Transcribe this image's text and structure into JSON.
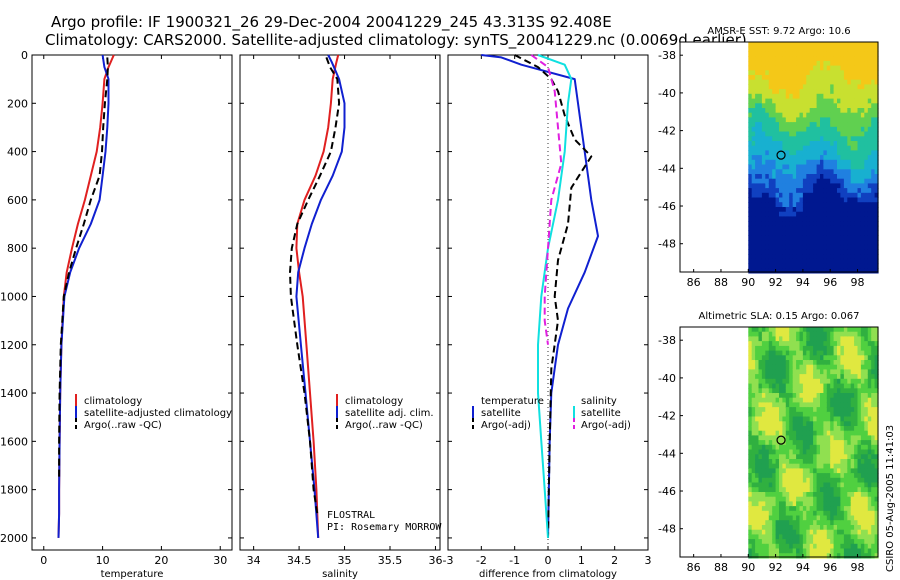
{
  "header": {
    "line1": "Argo profile: IF 1900321_26 29-Dec-2004 20041229_245 43.313S 92.408E",
    "line2": "Climatology: CARS2000. Satellite-adjusted climatology: synTS_20041229.nc (0.0069d earlier)"
  },
  "side_stamp": "CSIRO 05-Aug-2005 11:41:03",
  "colors": {
    "climatology": "#e02020",
    "satellite": "#1020d0",
    "argo": "#000000",
    "sal_satellite": "#10e0e0",
    "sal_argo": "#e020e0"
  },
  "chart_data": [
    {
      "type": "line",
      "panel": "temperature",
      "xlabel": "temperature",
      "xlim": [
        -2,
        32
      ],
      "ylim": [
        2050,
        0
      ],
      "y_reversed": true,
      "xticks": [
        0,
        10,
        20,
        30
      ],
      "yticks": [
        0,
        200,
        400,
        600,
        800,
        1000,
        1200,
        1400,
        1600,
        1800,
        2000
      ],
      "legend": [
        "climatology",
        "satellite-adjusted climatology",
        "Argo(..raw -QC)"
      ],
      "series": [
        {
          "name": "climatology",
          "color_key": "climatology",
          "dash": false,
          "x": [
            11.9,
            11.0,
            10.3,
            10.0,
            9.6,
            9.0,
            8.0,
            7.0,
            5.8,
            4.8,
            3.9,
            3.4,
            3.0,
            2.8,
            2.7,
            2.6,
            2.6,
            2.5
          ],
          "y": [
            0,
            50,
            100,
            200,
            300,
            400,
            500,
            600,
            700,
            800,
            900,
            1000,
            1200,
            1400,
            1600,
            1800,
            1900,
            2000
          ]
        },
        {
          "name": "satellite-adjusted climatology",
          "color_key": "satellite",
          "dash": false,
          "x": [
            10.0,
            10.3,
            11.0,
            11.0,
            10.8,
            10.5,
            10.0,
            9.5,
            8.0,
            6.0,
            4.5,
            3.5,
            3.0,
            2.8,
            2.7,
            2.6,
            2.6,
            2.5
          ],
          "y": [
            0,
            50,
            100,
            200,
            300,
            400,
            500,
            600,
            700,
            800,
            900,
            1000,
            1200,
            1400,
            1600,
            1800,
            1900,
            2000
          ]
        },
        {
          "name": "Argo(..raw -QC)",
          "color_key": "argo",
          "dash": true,
          "x": [
            10.8,
            10.9,
            10.8,
            10.4,
            10.1,
            9.9,
            9.5,
            8.0,
            6.8,
            5.5,
            4.3,
            3.4,
            2.9,
            2.7,
            2.6,
            2.6
          ],
          "y": [
            10,
            50,
            100,
            200,
            300,
            400,
            500,
            600,
            700,
            800,
            900,
            1000,
            1200,
            1400,
            1600,
            1750
          ]
        }
      ]
    },
    {
      "type": "line",
      "panel": "salinity",
      "xlabel": "salinity",
      "xlim": [
        33.85,
        36.05
      ],
      "ylim": [
        2050,
        0
      ],
      "y_reversed": true,
      "xticks": [
        34,
        34.5,
        35,
        35.5,
        36
      ],
      "legend": [
        "climatology",
        "satellite adj. clim.",
        "Argo(..raw -QC)"
      ],
      "annotations": [
        "FLOSTRAL",
        "PI: Rosemary MORROW"
      ],
      "series": [
        {
          "name": "climatology",
          "color_key": "climatology",
          "dash": false,
          "x": [
            34.93,
            34.91,
            34.87,
            34.85,
            34.82,
            34.77,
            34.68,
            34.56,
            34.48,
            34.47,
            34.5,
            34.54,
            34.58,
            34.62,
            34.66,
            34.69,
            34.71
          ],
          "y": [
            0,
            30,
            100,
            200,
            300,
            400,
            500,
            600,
            700,
            800,
            900,
            1000,
            1200,
            1400,
            1600,
            1800,
            2000
          ]
        },
        {
          "name": "satellite adj. clim.",
          "color_key": "satellite",
          "dash": false,
          "x": [
            34.82,
            34.86,
            34.94,
            35.0,
            35.0,
            34.97,
            34.87,
            34.74,
            34.64,
            34.56,
            34.49,
            34.47,
            34.52,
            34.57,
            34.62,
            34.67,
            34.71
          ],
          "y": [
            0,
            30,
            100,
            200,
            300,
            400,
            500,
            600,
            700,
            800,
            900,
            1000,
            1200,
            1400,
            1600,
            1800,
            2000
          ]
        },
        {
          "name": "Argo(..raw -QC)",
          "color_key": "argo",
          "dash": true,
          "x": [
            34.8,
            34.84,
            34.92,
            34.94,
            34.9,
            34.85,
            34.73,
            34.6,
            34.48,
            34.42,
            34.4,
            34.41,
            34.48,
            34.56,
            34.62,
            34.66,
            34.7
          ],
          "y": [
            10,
            50,
            100,
            200,
            300,
            400,
            500,
            600,
            700,
            800,
            900,
            1000,
            1200,
            1400,
            1600,
            1800,
            1900
          ]
        }
      ]
    },
    {
      "type": "line",
      "panel": "difference",
      "xlabel": "difference from climatology",
      "xlim": [
        -3,
        3
      ],
      "ylim": [
        2050,
        0
      ],
      "y_reversed": true,
      "xticks": [
        -3,
        -2,
        -1,
        0,
        1,
        2,
        3
      ],
      "legend_temperature": {
        "heading": "temperature",
        "items": [
          "satellite",
          "Argo(-adj)"
        ]
      },
      "legend_salinity": {
        "heading": "salinity",
        "items": [
          "satellite",
          "Argo(-adj)"
        ]
      },
      "series": [
        {
          "name": "temperature satellite",
          "color_key": "satellite",
          "dash": false,
          "x": [
            -2.0,
            -1.4,
            -0.8,
            0.8,
            0.9,
            1.0,
            1.1,
            1.2,
            1.3,
            1.5,
            1.1,
            0.6,
            0.3,
            0.1,
            0.05,
            0.0
          ],
          "y": [
            0,
            10,
            40,
            100,
            200,
            300,
            400,
            500,
            600,
            750,
            900,
            1050,
            1200,
            1400,
            1600,
            2000
          ]
        },
        {
          "name": "temperature Argo(-adj)",
          "color_key": "argo",
          "dash": true,
          "x": [
            -1.0,
            -0.3,
            0.1,
            0.3,
            0.5,
            0.8,
            1.3,
            0.7,
            0.6,
            0.3,
            0.2,
            0.3,
            0.1,
            0.05,
            0.0
          ],
          "y": [
            0,
            50,
            100,
            150,
            250,
            350,
            420,
            550,
            700,
            850,
            1000,
            1100,
            1300,
            1600,
            2000
          ]
        },
        {
          "name": "salinity satellite",
          "color_key": "sal_satellite",
          "dash": false,
          "x": [
            -0.3,
            0.5,
            0.7,
            0.6,
            0.5,
            0.3,
            0.0,
            -0.2,
            -0.3,
            -0.3,
            -0.2,
            -0.1,
            0.0
          ],
          "y": [
            0,
            40,
            100,
            200,
            400,
            600,
            800,
            1000,
            1200,
            1400,
            1600,
            1800,
            2000
          ]
        },
        {
          "name": "salinity Argo(-adj)",
          "color_key": "sal_argo",
          "dash": true,
          "x": [
            -0.5,
            0.0,
            0.2,
            0.3,
            0.4,
            0.1,
            0.0,
            -0.1,
            -0.1,
            0.0
          ],
          "y": [
            0,
            50,
            150,
            300,
            450,
            600,
            800,
            1000,
            1100,
            1200
          ]
        }
      ]
    },
    {
      "type": "heatmap",
      "panel": "sst_map",
      "title": "AMSR-E SST: 9.72 Argo: 10.6",
      "xticks": [
        86,
        88,
        90,
        92,
        94,
        96,
        98
      ],
      "yticks": [
        -38,
        -40,
        -42,
        -44,
        -46,
        -48
      ],
      "xlim": [
        85,
        99.5
      ],
      "ylim": [
        -49.5,
        -37.3
      ],
      "data_xlim": [
        90,
        99.5
      ],
      "marker": {
        "lon": 92.4,
        "lat": -43.3
      }
    },
    {
      "type": "heatmap",
      "panel": "sla_map",
      "title": "Altimetric SLA: 0.15 Argo: 0.067",
      "xticks": [
        86,
        88,
        90,
        92,
        94,
        96,
        98
      ],
      "yticks": [
        -38,
        -40,
        -42,
        -44,
        -46,
        -48
      ],
      "xlim": [
        85,
        99.5
      ],
      "ylim": [
        -49.5,
        -37.3
      ],
      "data_xlim": [
        90,
        99.5
      ],
      "marker": {
        "lon": 92.4,
        "lat": -43.3
      }
    }
  ]
}
